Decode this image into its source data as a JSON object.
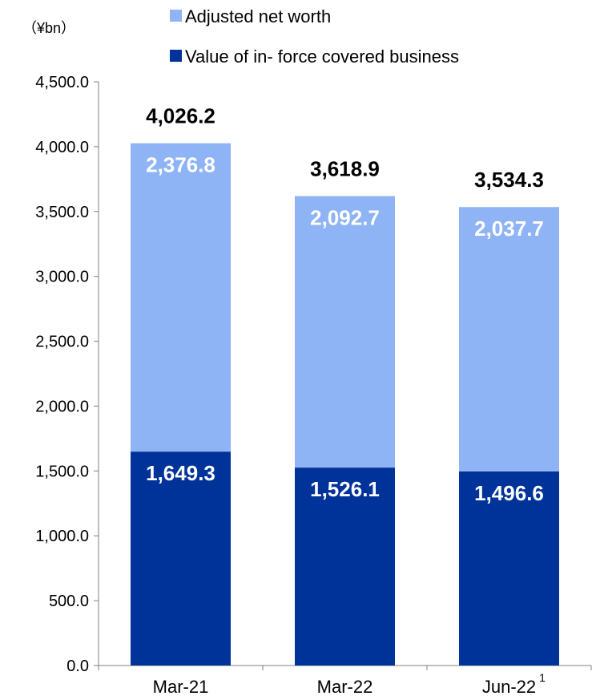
{
  "chart_data": {
    "type": "bar",
    "stacked": true,
    "unit_label": "（¥bn）",
    "categories": [
      "Mar-21",
      "Mar-22",
      "Jun-22"
    ],
    "category_footnotes": [
      "",
      "",
      "1"
    ],
    "series": [
      {
        "name": "Value of in- force covered business",
        "values": [
          1649.3,
          1526.1,
          1496.6
        ],
        "labels": [
          "1,649.3",
          "1,526.1",
          "1,496.6"
        ],
        "color": "#003399"
      },
      {
        "name": "Adjusted net worth",
        "values": [
          2376.8,
          2092.7,
          2037.7
        ],
        "labels": [
          "2,376.8",
          "2,092.7",
          "2,037.7"
        ],
        "color": "#8fb4f5"
      }
    ],
    "totals": [
      4026.2,
      3618.9,
      3534.3
    ],
    "total_labels": [
      "4,026.2",
      "3,618.9",
      "3,534.3"
    ],
    "legend": [
      "Adjusted net worth",
      "Value of in- force covered business"
    ],
    "legend_position": "top",
    "ylim": [
      0,
      4500
    ],
    "yticks": [
      0,
      500,
      1000,
      1500,
      2000,
      2500,
      3000,
      3500,
      4000,
      4500
    ],
    "ytick_labels": [
      "0.0",
      "500.0",
      "1,000.0",
      "1,500.0",
      "2,000.0",
      "2,500.0",
      "3,000.0",
      "3,500.0",
      "4,000.0",
      "4,500.0"
    ],
    "grid": false
  }
}
